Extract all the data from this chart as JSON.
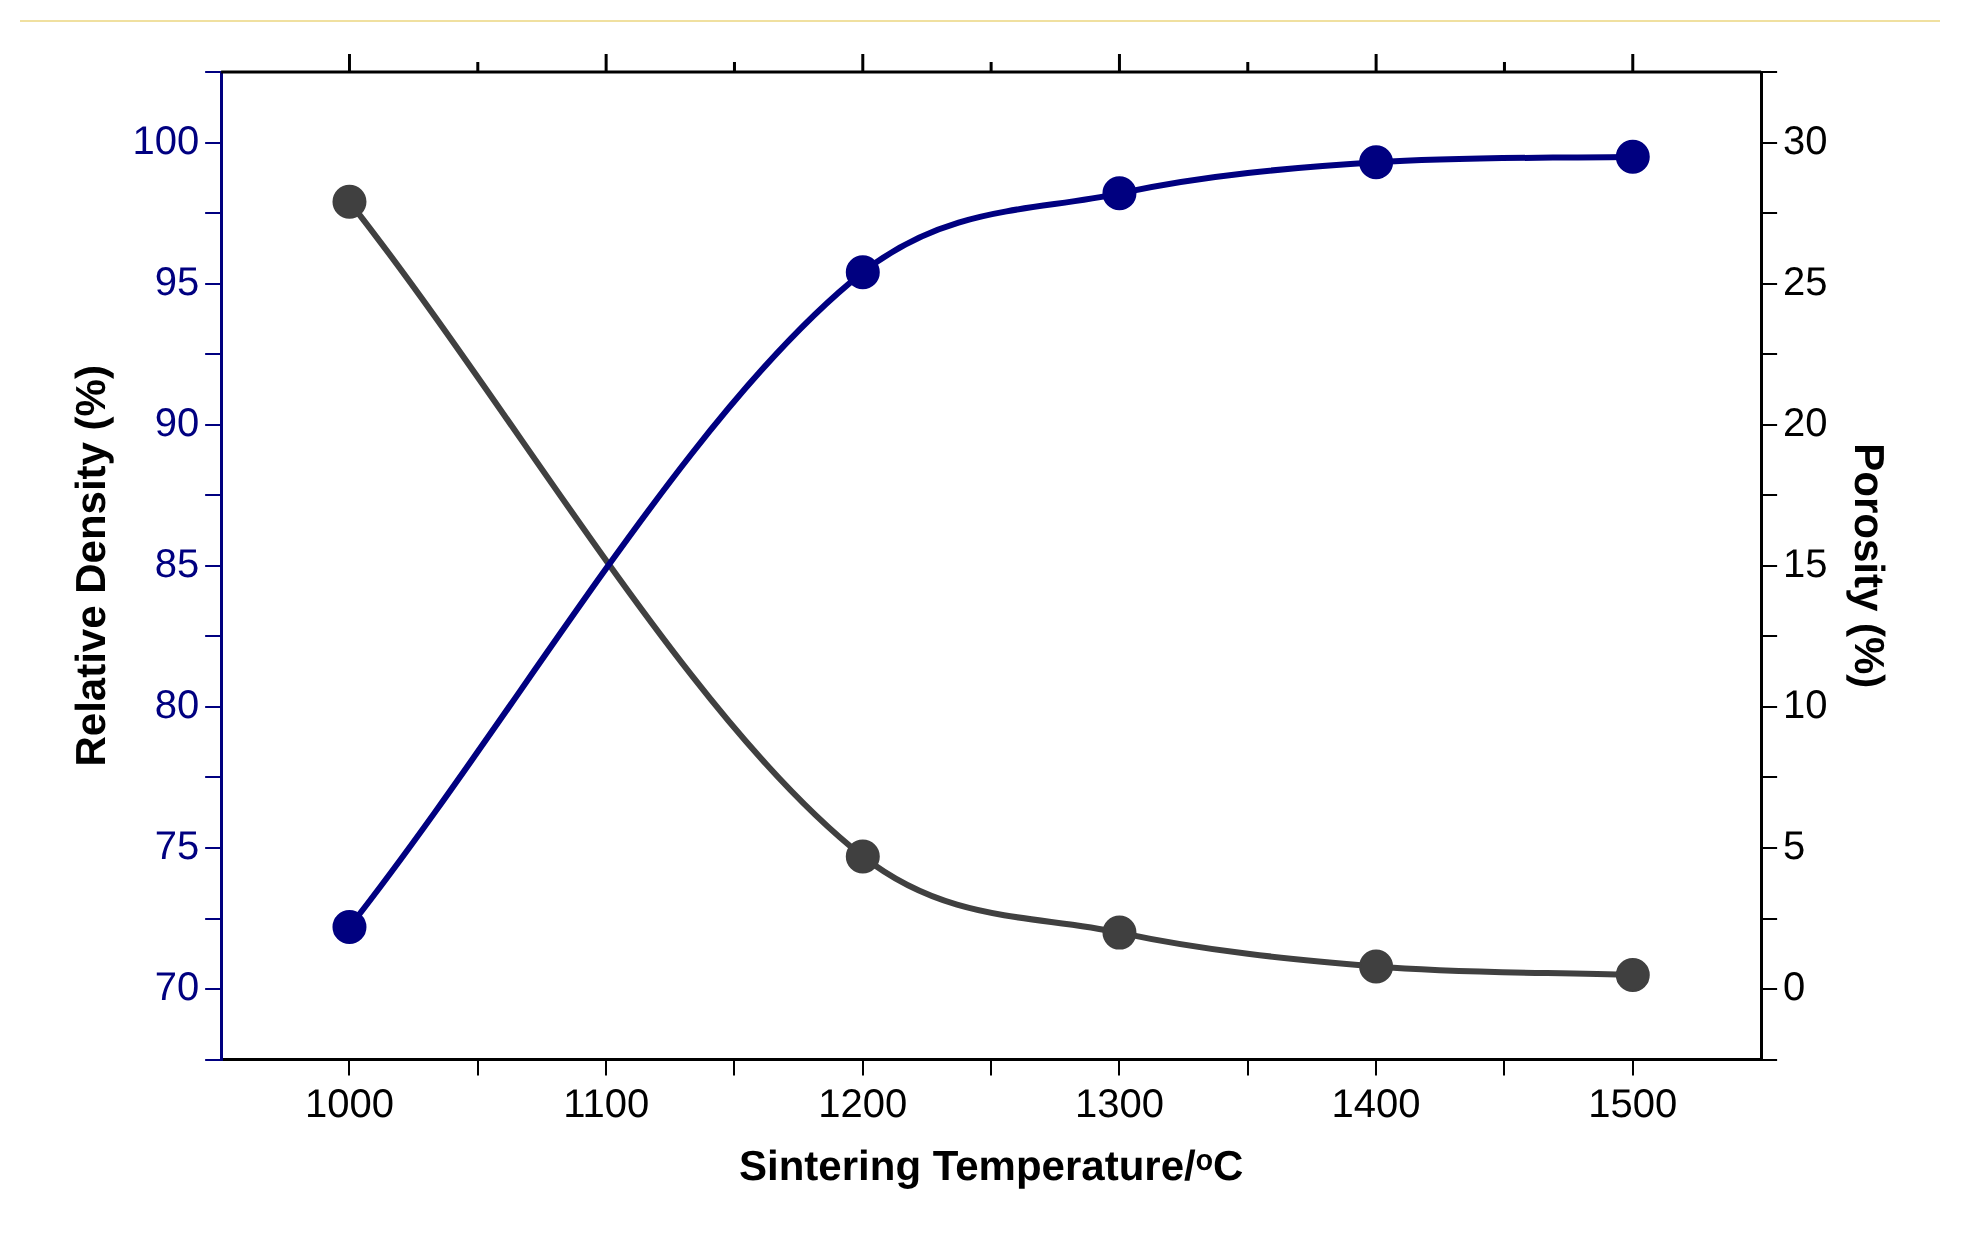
{
  "chart_data": {
    "type": "line",
    "xlabel": "Sintering Temperature/ᵒC",
    "ylabel": "Relative Density (%)",
    "y2label": "Porosity (%)",
    "x": [
      1000,
      1200,
      1300,
      1400,
      1500
    ],
    "series": [
      {
        "color": "#000080",
        "values": [
          72.2,
          95.4,
          98.2,
          99.3,
          99.5
        ]
      },
      {
        "color": "#404040",
        "axis": "y2",
        "values": [
          27.9,
          4.7,
          2.0,
          0.8,
          0.5
        ]
      }
    ],
    "xlim": [
      950,
      1550
    ],
    "xticks": [
      1000,
      {
        "value": 1050,
        "label": null
      },
      1100,
      {
        "value": 1150,
        "label": null
      },
      1200,
      {
        "value": 1250,
        "label": null
      },
      1300,
      {
        "value": 1350,
        "label": null
      },
      1400,
      {
        "value": 1450,
        "label": null
      },
      1500
    ],
    "ylim": [
      67.5,
      102.5
    ],
    "yticks": [
      {
        "value": 67.5,
        "label": null
      },
      70,
      {
        "value": 72.5,
        "label": null
      },
      75,
      {
        "value": 77.5,
        "label": null
      },
      80,
      {
        "value": 82.5,
        "label": null
      },
      85,
      {
        "value": 87.5,
        "label": null
      },
      90,
      {
        "value": 92.5,
        "label": null
      },
      95,
      {
        "value": 97.5,
        "label": null
      },
      100,
      {
        "value": 102.5,
        "label": null
      }
    ],
    "y2lim": [
      -2.5,
      32.5
    ],
    "y2ticks": [
      {
        "value": -2.5,
        "label": null
      },
      0,
      {
        "value": 2.5,
        "label": null
      },
      5,
      {
        "value": 7.5,
        "label": null
      },
      10,
      {
        "value": 12.5,
        "label": null
      },
      15,
      {
        "value": 17.5,
        "label": null
      },
      20,
      {
        "value": 22.5,
        "label": null
      },
      25,
      {
        "value": 27.5,
        "label": null
      },
      30,
      {
        "value": 32.5,
        "label": null
      }
    ],
    "grid": false,
    "legend": false,
    "marker": "circle",
    "line_style": "solid"
  }
}
